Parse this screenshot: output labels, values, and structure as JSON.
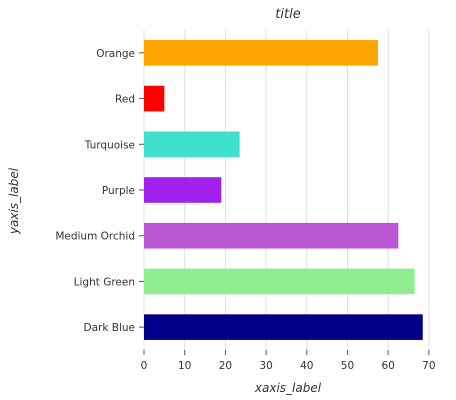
{
  "chart_data": {
    "type": "bar",
    "orientation": "horizontal",
    "title": "title",
    "xlabel": "xaxis_label",
    "ylabel": "yaxis_label",
    "categories": [
      "Dark Blue",
      "Light Green",
      "Medium Orchid",
      "Purple",
      "Turquoise",
      "Red",
      "Orange"
    ],
    "values": [
      68.5,
      66.5,
      62.5,
      19,
      23.5,
      5,
      57.5
    ],
    "colors": [
      "#00008b",
      "#90ee90",
      "#ba55d3",
      "#a020f0",
      "#40e0d0",
      "#ff0000",
      "#ffa500"
    ],
    "xlim": [
      0,
      72
    ],
    "xticks": [
      0,
      10,
      20,
      30,
      40,
      50,
      60,
      70
    ],
    "xtick_labels": [
      "0",
      "10",
      "20",
      "30",
      "40",
      "50",
      "60",
      "70"
    ],
    "grid": true
  }
}
